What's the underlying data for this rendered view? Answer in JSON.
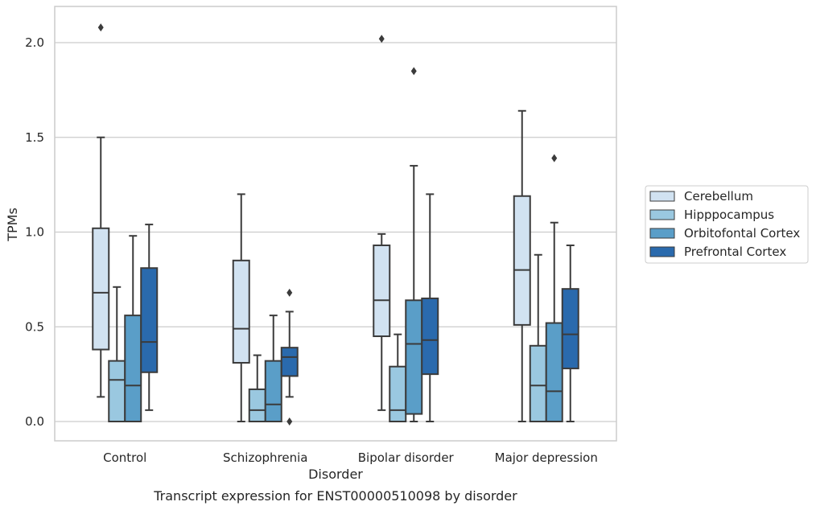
{
  "chart_data": {
    "type": "box",
    "title": "",
    "caption": "Transcript expression for ENST00000510098 by disorder",
    "xlabel": "Disorder",
    "ylabel": "TPMs",
    "ylim": [
      -0.1,
      2.19
    ],
    "yticks": [
      0.0,
      0.5,
      1.0,
      1.5,
      2.0
    ],
    "ytick_labels": [
      "0.0",
      "0.5",
      "1.0",
      "1.5",
      "2.0"
    ],
    "grid": "horizontal",
    "legend_placement": "right",
    "categories": [
      "Control",
      "Schizophrenia",
      "Bipolar disorder",
      "Major depression"
    ],
    "series": [
      {
        "name": "Cerebellum",
        "color": "#d1e2f1",
        "boxes": [
          {
            "whislo": 0.13,
            "q1": 0.38,
            "med": 0.68,
            "q3": 1.02,
            "whishi": 1.5,
            "fliers": [
              2.08
            ]
          },
          {
            "whislo": 0.0,
            "q1": 0.31,
            "med": 0.49,
            "q3": 0.85,
            "whishi": 1.2,
            "fliers": []
          },
          {
            "whislo": 0.06,
            "q1": 0.45,
            "med": 0.64,
            "q3": 0.93,
            "whishi": 0.99,
            "fliers": [
              2.02
            ]
          },
          {
            "whislo": 0.0,
            "q1": 0.51,
            "med": 0.8,
            "q3": 1.19,
            "whishi": 1.64,
            "fliers": []
          }
        ]
      },
      {
        "name": "Hipppocampus",
        "color": "#9ac8e0",
        "boxes": [
          {
            "whislo": 0.0,
            "q1": 0.0,
            "med": 0.22,
            "q3": 0.32,
            "whishi": 0.71,
            "fliers": []
          },
          {
            "whislo": 0.0,
            "q1": 0.0,
            "med": 0.06,
            "q3": 0.17,
            "whishi": 0.35,
            "fliers": []
          },
          {
            "whislo": 0.0,
            "q1": 0.0,
            "med": 0.06,
            "q3": 0.29,
            "whishi": 0.46,
            "fliers": []
          },
          {
            "whislo": 0.0,
            "q1": 0.0,
            "med": 0.19,
            "q3": 0.4,
            "whishi": 0.88,
            "fliers": []
          }
        ]
      },
      {
        "name": "Orbitofontal Cortex",
        "color": "#5a9ec8",
        "boxes": [
          {
            "whislo": 0.0,
            "q1": 0.0,
            "med": 0.19,
            "q3": 0.56,
            "whishi": 0.98,
            "fliers": []
          },
          {
            "whislo": 0.0,
            "q1": 0.0,
            "med": 0.09,
            "q3": 0.32,
            "whishi": 0.56,
            "fliers": []
          },
          {
            "whislo": 0.0,
            "q1": 0.04,
            "med": 0.41,
            "q3": 0.64,
            "whishi": 1.35,
            "fliers": [
              1.85
            ]
          },
          {
            "whislo": 0.0,
            "q1": 0.0,
            "med": 0.16,
            "q3": 0.52,
            "whishi": 1.05,
            "fliers": [
              1.39
            ]
          }
        ]
      },
      {
        "name": "Prefrontal Cortex",
        "color": "#2a6aad",
        "boxes": [
          {
            "whislo": 0.06,
            "q1": 0.26,
            "med": 0.42,
            "q3": 0.81,
            "whishi": 1.04,
            "fliers": []
          },
          {
            "whislo": 0.13,
            "q1": 0.24,
            "med": 0.34,
            "q3": 0.39,
            "whishi": 0.58,
            "fliers": [
              0.68,
              0.0
            ]
          },
          {
            "whislo": 0.0,
            "q1": 0.25,
            "med": 0.43,
            "q3": 0.65,
            "whishi": 1.2,
            "fliers": []
          },
          {
            "whislo": 0.0,
            "q1": 0.28,
            "med": 0.46,
            "q3": 0.7,
            "whishi": 0.93,
            "fliers": []
          }
        ]
      }
    ]
  }
}
